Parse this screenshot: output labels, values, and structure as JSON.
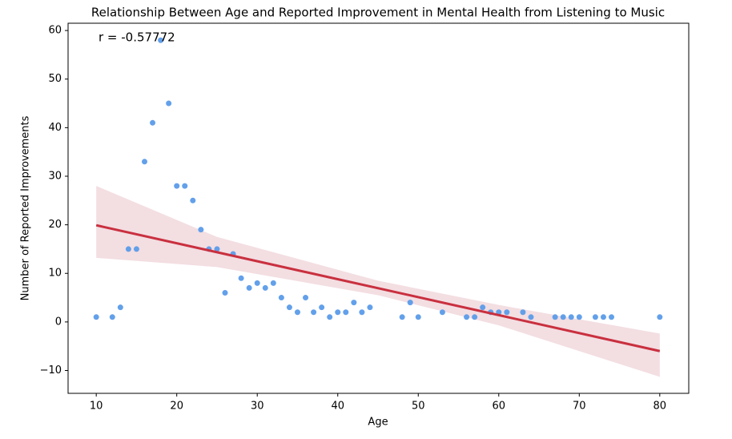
{
  "chart_data": {
    "type": "scatter",
    "title": "Relationship Between Age and Reported Improvement in Mental Health from Listening to Music",
    "xlabel": "Age",
    "ylabel": "Number of Reported Improvements",
    "annotation": "r = -0.57772",
    "x": [
      10,
      12,
      13,
      14,
      15,
      16,
      17,
      18,
      19,
      20,
      21,
      22,
      23,
      24,
      25,
      26,
      27,
      28,
      29,
      30,
      31,
      32,
      33,
      34,
      35,
      36,
      37,
      38,
      39,
      40,
      41,
      42,
      43,
      44,
      48,
      49,
      50,
      53,
      56,
      57,
      58,
      59,
      60,
      61,
      63,
      64,
      67,
      68,
      69,
      70,
      72,
      73,
      74,
      80
    ],
    "y": [
      1,
      1,
      3,
      15,
      15,
      33,
      41,
      58,
      45,
      28,
      28,
      25,
      19,
      15,
      15,
      6,
      14,
      9,
      7,
      8,
      7,
      8,
      5,
      3,
      2,
      5,
      2,
      3,
      1,
      2,
      2,
      4,
      2,
      3,
      1,
      4,
      1,
      2,
      1,
      1,
      3,
      2,
      2,
      2,
      2,
      1,
      1,
      1,
      1,
      1,
      1,
      1,
      1,
      1
    ],
    "color": "#5b9be9",
    "regression": {
      "x": [
        10,
        80
      ],
      "y": [
        19.9,
        -6.0
      ],
      "color": "#c9303f"
    },
    "ci_band": {
      "x": [
        10,
        25,
        45,
        60,
        80
      ],
      "lower": [
        13.2,
        11.3,
        5.5,
        -0.7,
        -11.3
      ],
      "upper": [
        28.0,
        17.5,
        8.5,
        3.5,
        -2.4
      ],
      "color": "#f2dadf"
    },
    "xlim": [
      6.5,
      83.6
    ],
    "ylim": [
      -14.7,
      61.5
    ],
    "xticks": [
      10,
      20,
      30,
      40,
      50,
      60,
      70,
      80
    ],
    "yticks": [
      {
        "value": -10,
        "label": "−10"
      },
      0,
      10,
      20,
      30,
      40,
      50,
      60
    ]
  }
}
